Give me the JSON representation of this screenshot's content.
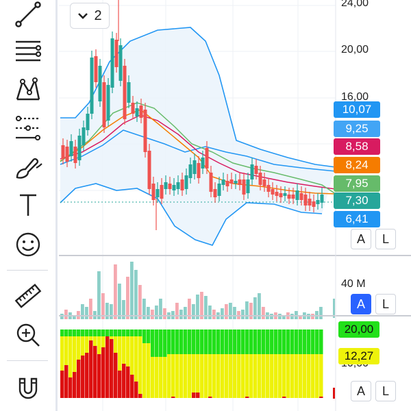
{
  "toolbar": {
    "tools": [
      {
        "name": "trend-line-icon"
      },
      {
        "name": "fib-levels-icon"
      },
      {
        "name": "pattern-icon"
      },
      {
        "name": "projection-icon"
      },
      {
        "name": "brush-icon"
      },
      {
        "name": "text-icon"
      },
      {
        "name": "emoji-icon"
      },
      {
        "name": "ruler-icon"
      },
      {
        "name": "zoom-in-icon"
      },
      {
        "name": "magnet-icon"
      }
    ]
  },
  "legend_toggle": {
    "count": "2"
  },
  "price_axis": {
    "labels": [
      "24,00",
      "20,00",
      "16,00"
    ]
  },
  "price_tags": [
    {
      "value": "10,07",
      "color": "#2196f3"
    },
    {
      "value": "9,25",
      "color": "#42a5f5"
    },
    {
      "value": "8,58",
      "color": "#d81b60"
    },
    {
      "value": "8,24",
      "color": "#f57c00"
    },
    {
      "value": "7,95",
      "color": "#66bb6a"
    },
    {
      "value": "7,30",
      "color": "#26a69a"
    },
    {
      "value": "6,41",
      "color": "#2196f3"
    }
  ],
  "volume_axis": {
    "label": "40 M"
  },
  "osc_tags": [
    {
      "value": "20,00",
      "color": "#22e01a",
      "text_color": "#111111"
    },
    {
      "value": "12,27",
      "color": "#eef20a",
      "text_color": "#111111"
    }
  ],
  "osc_axis": {
    "label": "10,00"
  },
  "pane_buttons": [
    {
      "a": "A",
      "l": "L"
    },
    {
      "a": "A",
      "l": "L"
    },
    {
      "a": "A",
      "l": "L"
    }
  ],
  "colors": {
    "up": "#26a69a",
    "down": "#ef5350",
    "vol_up": "#8ccfc8",
    "vol_down": "#f5a9b0",
    "band": "#2196f3",
    "band_fill": "#e8f2fb",
    "sma_red": "#d81b60",
    "sma_orange": "#f57c00",
    "sma_green": "#66bb6a"
  }
}
